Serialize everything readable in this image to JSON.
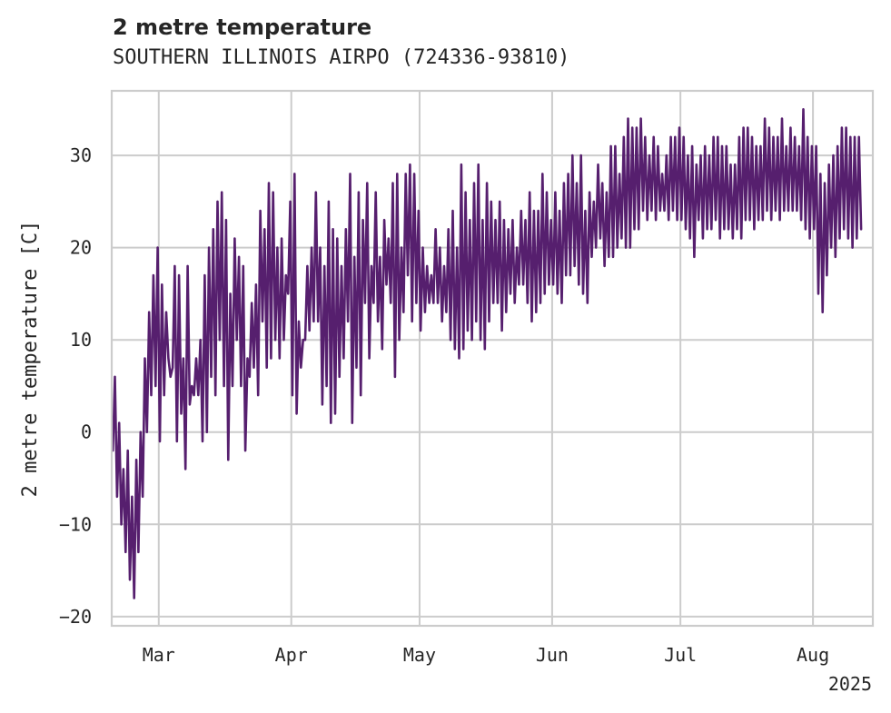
{
  "header": {
    "title": "2 metre temperature",
    "subtitle": "SOUTHERN ILLINOIS AIRPO (724336-93810)"
  },
  "chart_data": {
    "type": "line",
    "title": "2 metre temperature",
    "subtitle": "SOUTHERN ILLINOIS AIRPO (724336-93810)",
    "ylabel": "2 metre temperature [C]",
    "xlabel": "",
    "ylim": [
      -21,
      37
    ],
    "xlim": [
      "2025-02-18",
      "2025-08-15"
    ],
    "y_ticks": [
      -20,
      -10,
      0,
      10,
      20,
      30
    ],
    "x_ticks": [
      {
        "date": "2025-03-01",
        "label": "Mar"
      },
      {
        "date": "2025-04-01",
        "label": "Apr"
      },
      {
        "date": "2025-05-01",
        "label": "May"
      },
      {
        "date": "2025-06-01",
        "label": "Jun"
      },
      {
        "date": "2025-07-01",
        "label": "Jul"
      },
      {
        "date": "2025-08-01",
        "label": "Aug"
      }
    ],
    "x_offset_label": "2025",
    "grid": true,
    "line_color": "#561f6e",
    "series": [
      {
        "x": [
          "2025-02-18",
          "2025-02-19",
          "2025-02-20",
          "2025-02-21",
          "2025-02-22",
          "2025-02-23",
          "2025-02-24",
          "2025-02-25",
          "2025-02-26",
          "2025-02-27",
          "2025-02-28",
          "2025-03-01",
          "2025-03-02",
          "2025-03-03",
          "2025-03-04",
          "2025-03-05",
          "2025-03-06",
          "2025-03-07",
          "2025-03-08",
          "2025-03-09",
          "2025-03-10",
          "2025-03-11",
          "2025-03-12",
          "2025-03-13",
          "2025-03-14",
          "2025-03-15",
          "2025-03-16",
          "2025-03-17",
          "2025-03-18",
          "2025-03-19",
          "2025-03-20",
          "2025-03-21",
          "2025-03-22",
          "2025-03-23",
          "2025-03-24",
          "2025-03-25",
          "2025-03-26",
          "2025-03-27",
          "2025-03-28",
          "2025-03-29",
          "2025-03-30",
          "2025-03-31",
          "2025-04-01",
          "2025-04-02",
          "2025-04-03",
          "2025-04-04",
          "2025-04-05",
          "2025-04-06",
          "2025-04-07",
          "2025-04-08",
          "2025-04-09",
          "2025-04-10",
          "2025-04-11",
          "2025-04-12",
          "2025-04-13",
          "2025-04-14",
          "2025-04-15",
          "2025-04-16",
          "2025-04-17",
          "2025-04-18",
          "2025-04-19",
          "2025-04-20",
          "2025-04-21",
          "2025-04-22",
          "2025-04-23",
          "2025-04-24",
          "2025-04-25",
          "2025-04-26",
          "2025-04-27",
          "2025-04-28",
          "2025-04-29",
          "2025-04-30",
          "2025-05-01",
          "2025-05-02",
          "2025-05-03",
          "2025-05-04",
          "2025-05-05",
          "2025-05-06",
          "2025-05-07",
          "2025-05-08",
          "2025-05-09",
          "2025-05-10",
          "2025-05-11",
          "2025-05-12",
          "2025-05-13",
          "2025-05-14",
          "2025-05-15",
          "2025-05-16",
          "2025-05-17",
          "2025-05-18",
          "2025-05-19",
          "2025-05-20",
          "2025-05-21",
          "2025-05-22",
          "2025-05-23",
          "2025-05-24",
          "2025-05-25",
          "2025-05-26",
          "2025-05-27",
          "2025-05-28",
          "2025-05-29",
          "2025-05-30",
          "2025-05-31",
          "2025-06-01",
          "2025-06-02",
          "2025-06-03",
          "2025-06-04",
          "2025-06-05",
          "2025-06-06",
          "2025-06-07",
          "2025-06-08",
          "2025-06-09",
          "2025-06-10",
          "2025-06-11",
          "2025-06-12",
          "2025-06-13",
          "2025-06-14",
          "2025-06-15",
          "2025-06-16",
          "2025-06-17",
          "2025-06-18",
          "2025-06-19",
          "2025-06-20",
          "2025-06-21",
          "2025-06-22",
          "2025-06-23",
          "2025-06-24",
          "2025-06-25",
          "2025-06-26",
          "2025-06-27",
          "2025-06-28",
          "2025-06-29",
          "2025-06-30",
          "2025-07-01",
          "2025-07-02",
          "2025-07-03",
          "2025-07-04",
          "2025-07-05",
          "2025-07-06",
          "2025-07-07",
          "2025-07-08",
          "2025-07-09",
          "2025-07-10",
          "2025-07-11",
          "2025-07-12",
          "2025-07-13",
          "2025-07-14",
          "2025-07-15",
          "2025-07-16",
          "2025-07-17",
          "2025-07-18",
          "2025-07-19",
          "2025-07-20",
          "2025-07-21",
          "2025-07-22",
          "2025-07-23",
          "2025-07-24",
          "2025-07-25",
          "2025-07-26",
          "2025-07-27",
          "2025-07-28",
          "2025-07-29",
          "2025-07-30",
          "2025-07-31",
          "2025-08-01",
          "2025-08-02",
          "2025-08-03",
          "2025-08-04",
          "2025-08-05",
          "2025-08-06",
          "2025-08-07",
          "2025-08-08",
          "2025-08-09",
          "2025-08-10",
          "2025-08-11",
          "2025-08-12",
          "2025-08-13",
          "2025-08-14"
        ],
        "min": [
          -2,
          -7,
          -10,
          -13,
          -16,
          -18,
          -13,
          -7,
          0,
          4,
          5,
          -1,
          4,
          8,
          7,
          -1,
          2,
          -4,
          3,
          4,
          4,
          -1,
          0,
          6,
          4,
          10,
          5,
          -3,
          5,
          10,
          5,
          -2,
          6,
          7,
          4,
          12,
          7,
          8,
          10,
          8,
          10,
          15,
          4,
          2,
          7,
          10,
          11,
          12,
          12,
          3,
          5,
          1,
          2,
          6,
          8,
          12,
          1,
          7,
          4,
          14,
          8,
          14,
          12,
          9,
          16,
          14,
          6,
          10,
          13,
          17,
          12,
          14,
          11,
          13,
          14,
          14,
          14,
          12,
          13,
          10,
          9,
          8,
          9,
          11,
          10,
          12,
          10,
          9,
          12,
          14,
          14,
          11,
          13,
          15,
          14,
          16,
          16,
          14,
          12,
          13,
          14,
          15,
          16,
          16,
          15,
          14,
          17,
          17,
          18,
          16,
          15,
          14,
          19,
          20,
          21,
          18,
          19,
          19,
          20,
          21,
          20,
          20,
          22,
          22,
          24,
          23,
          24,
          23,
          24,
          24,
          23,
          24,
          23,
          23,
          22,
          21,
          19,
          23,
          21,
          22,
          22,
          23,
          21,
          22,
          22,
          21,
          22,
          21,
          23,
          23,
          22,
          23,
          23,
          24,
          23,
          24,
          23,
          24,
          24,
          24,
          24,
          23,
          22,
          21,
          22,
          15,
          13,
          17,
          20,
          19,
          21,
          22,
          21,
          20,
          21,
          22,
          22
        ],
        "max": [
          6,
          1,
          -4,
          -2,
          -7,
          -3,
          0,
          8,
          13,
          17,
          20,
          16,
          13,
          6,
          18,
          17,
          8,
          18,
          5,
          8,
          10,
          17,
          20,
          22,
          25,
          26,
          23,
          15,
          21,
          19,
          18,
          8,
          14,
          16,
          24,
          22,
          27,
          26,
          20,
          21,
          17,
          25,
          28,
          12,
          10,
          18,
          20,
          26,
          20,
          18,
          25,
          22,
          21,
          18,
          22,
          28,
          19,
          26,
          23,
          27,
          18,
          26,
          19,
          23,
          21,
          27,
          28,
          20,
          28,
          29,
          28,
          24,
          20,
          18,
          17,
          22,
          20,
          18,
          22,
          24,
          20,
          29,
          26,
          23,
          27,
          29,
          23,
          27,
          25,
          23,
          25,
          23,
          22,
          23,
          20,
          24,
          23,
          26,
          24,
          24,
          28,
          26,
          23,
          26,
          24,
          27,
          28,
          30,
          27,
          30,
          24,
          26,
          25,
          29,
          27,
          26,
          31,
          31,
          28,
          32,
          34,
          33,
          33,
          34,
          32,
          30,
          32,
          31,
          28,
          30,
          32,
          32,
          33,
          32,
          30,
          31,
          29,
          30,
          31,
          30,
          32,
          32,
          31,
          31,
          29,
          29,
          32,
          33,
          33,
          32,
          31,
          31,
          34,
          33,
          32,
          32,
          34,
          31,
          33,
          32,
          31,
          35,
          32,
          31,
          31,
          28,
          27,
          29,
          30,
          31,
          33,
          33,
          32,
          32,
          32
        ]
      }
    ]
  }
}
